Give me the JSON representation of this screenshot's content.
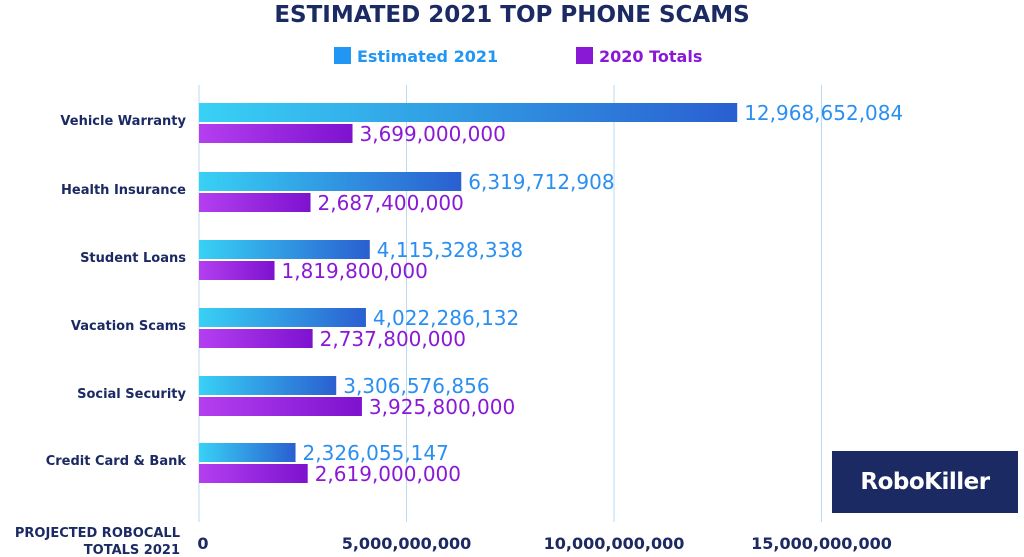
{
  "chart_data": {
    "type": "bar",
    "orientation": "horizontal",
    "title": "ESTIMATED 2021 TOP PHONE SCAMS",
    "xlabel": "PROJECTED ROBOCALL TOTALS 2021",
    "xlabel_lines": [
      "PROJECTED ROBOCALL",
      "TOTALS 2021"
    ],
    "ylabel": "",
    "xlim": [
      0,
      20000000000
    ],
    "xticks": [
      0,
      5000000000,
      10000000000,
      15000000000
    ],
    "xtick_labels": [
      "0",
      "5,000,000,000",
      "10,000,000,000",
      "15,000,000,000"
    ],
    "categories": [
      "Vehicle Warranty",
      "Health Insurance",
      "Student Loans",
      "Vacation Scams",
      "Social Security",
      "Credit Card & Bank"
    ],
    "series": [
      {
        "name": "Estimated 2021",
        "color": "#2196f3",
        "gradient": [
          "#38d1f5",
          "#2a5fd0"
        ],
        "values": [
          12968652084,
          6319712908,
          4115328338,
          4022286132,
          3306576856,
          2326055147
        ],
        "labels": [
          "12,968,652,084",
          "6,319,712,908",
          "4,115,328,338",
          "4,022,286,132",
          "3,306,576,856",
          "2,326,055,147"
        ]
      },
      {
        "name": "2020 Totals",
        "color": "#8a19d6",
        "gradient": [
          "#b43ff0",
          "#7d12cf"
        ],
        "values": [
          3699000000,
          2687400000,
          1819800000,
          2737800000,
          3925800000,
          2619000000
        ],
        "labels": [
          "3,699,000,000",
          "2,687,400,000",
          "1,819,800,000",
          "2,737,800,000",
          "3,925,800,000",
          "2,619,000,000"
        ]
      }
    ],
    "grid": true,
    "legend_position": "top",
    "label_color": "#1b2a63"
  },
  "brand": {
    "logo_text": "RoboKiller"
  }
}
